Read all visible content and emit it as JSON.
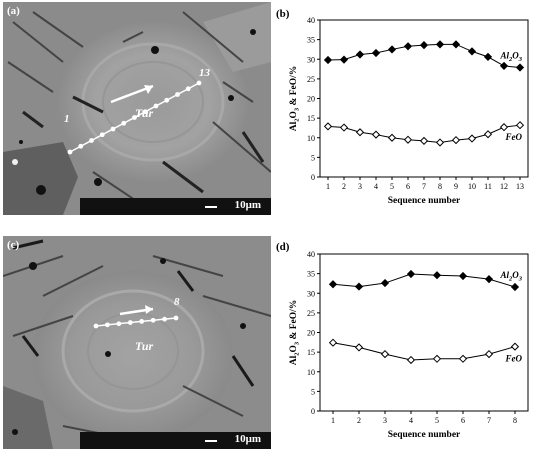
{
  "panels": {
    "a": "(a)",
    "b": "(b)",
    "c": "(c)",
    "d": "(d)"
  },
  "sem": [
    {
      "mineral": "Tur",
      "start_label": "1",
      "end_label": "13",
      "scale": "10μm"
    },
    {
      "mineral": "Tur",
      "start_label": "",
      "end_label": "8",
      "scale": "10μm"
    }
  ],
  "colors": {
    "line": "#000000",
    "sem_gray": "#8e8e8e",
    "scalebar": "#111111"
  },
  "chart_data": [
    {
      "type": "line",
      "title": "",
      "xlabel": "Sequence number",
      "ylabel_parts": [
        "Al",
        "2",
        "O",
        "3",
        " & FeO/%"
      ],
      "ylim": [
        0,
        40
      ],
      "yticks": [
        0,
        5,
        10,
        15,
        20,
        25,
        30,
        35,
        40
      ],
      "x": [
        1,
        2,
        3,
        4,
        5,
        6,
        7,
        8,
        9,
        10,
        11,
        12,
        13
      ],
      "series": [
        {
          "name_parts": [
            "Al",
            "2",
            "O",
            "3"
          ],
          "marker": "filled-diamond",
          "values": [
            29.8,
            29.9,
            31.2,
            31.6,
            32.5,
            33.3,
            33.6,
            33.8,
            33.8,
            32.0,
            30.6,
            28.3,
            27.9
          ]
        },
        {
          "name_parts": [
            "FeO"
          ],
          "marker": "open-diamond",
          "values": [
            12.9,
            12.6,
            11.4,
            10.8,
            10.0,
            9.5,
            9.2,
            8.8,
            9.4,
            9.8,
            10.9,
            12.7,
            13.2
          ]
        }
      ]
    },
    {
      "type": "line",
      "title": "",
      "xlabel": "Sequence number",
      "ylabel_parts": [
        "Al",
        "2",
        "O",
        "3",
        " & FeO/%"
      ],
      "ylim": [
        0,
        40
      ],
      "yticks": [
        0,
        5,
        10,
        15,
        20,
        25,
        30,
        35,
        40
      ],
      "x": [
        1,
        2,
        3,
        4,
        5,
        6,
        7,
        8
      ],
      "series": [
        {
          "name_parts": [
            "Al",
            "2",
            "O",
            "3"
          ],
          "marker": "filled-diamond",
          "values": [
            32.3,
            31.7,
            32.6,
            34.9,
            34.6,
            34.4,
            33.6,
            31.6
          ]
        },
        {
          "name_parts": [
            "FeO"
          ],
          "marker": "open-diamond",
          "values": [
            17.4,
            16.2,
            14.5,
            13.0,
            13.3,
            13.3,
            14.5,
            16.4
          ]
        }
      ]
    }
  ]
}
